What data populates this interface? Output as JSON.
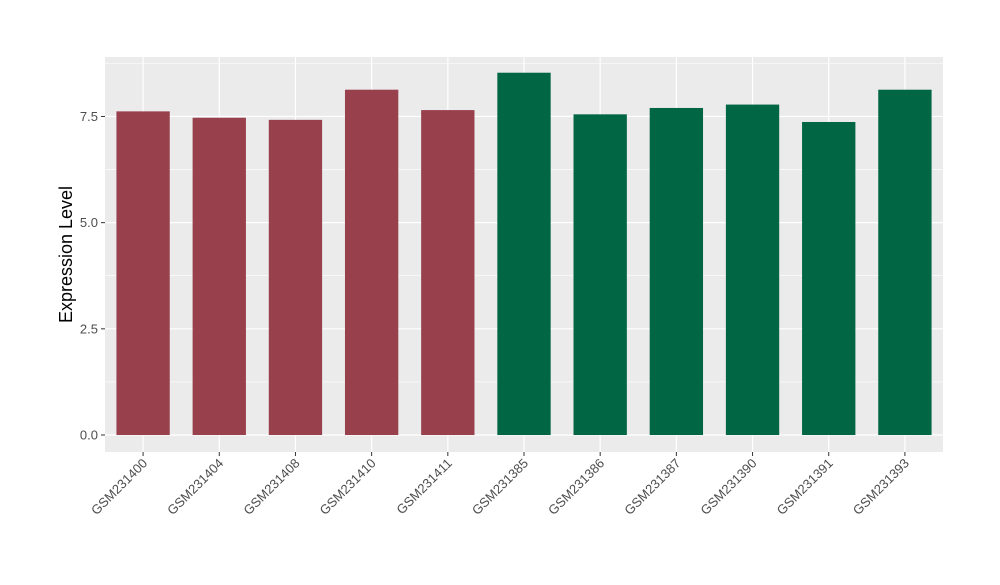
{
  "chart_data": {
    "type": "bar",
    "title": "",
    "xlabel": "",
    "ylabel": "Expression Level",
    "ylim": [
      -0.4,
      8.9
    ],
    "yticks": [
      0.0,
      2.5,
      5.0,
      7.5
    ],
    "ytick_labels": [
      "0.0",
      "2.5",
      "5.0",
      "7.5"
    ],
    "grid": true,
    "legend": "none",
    "categories": [
      "GSM231400",
      "GSM231404",
      "GSM231408",
      "GSM231410",
      "GSM231411",
      "GSM231385",
      "GSM231386",
      "GSM231387",
      "GSM231390",
      "GSM231391",
      "GSM231393"
    ],
    "values": [
      7.62,
      7.47,
      7.42,
      8.13,
      7.65,
      8.53,
      7.55,
      7.7,
      7.78,
      7.37,
      8.13
    ],
    "bar_colors": [
      "#98414D",
      "#98414D",
      "#98414D",
      "#98414D",
      "#98414D",
      "#006644",
      "#006644",
      "#006644",
      "#006644",
      "#006644",
      "#006644"
    ],
    "panel_color": "#EBEBEB",
    "grid_color": "#FFFFFF"
  }
}
